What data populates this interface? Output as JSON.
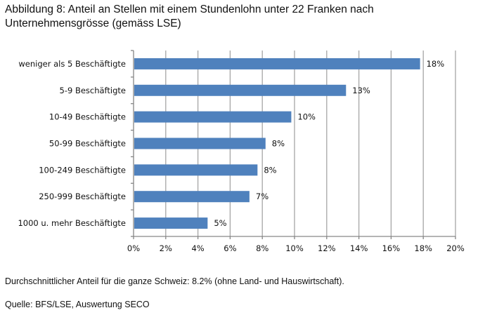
{
  "title_line1": "Abbildung 8: Anteil an Stellen mit einem Stundenlohn unter 22 Franken nach",
  "title_line2": "Unternehmensgrösse (gemäss LSE)",
  "note": "Durchschnittlicher Anteil für die ganze Schweiz: 8.2% (ohne Land- und Hauswirtschaft).",
  "source": "Quelle: BFS/LSE, Auswertung SECO",
  "chart_data": {
    "type": "bar",
    "orientation": "horizontal",
    "title": "Abbildung 8: Anteil an Stellen mit einem Stundenlohn unter 22 Franken nach Unternehmensgrösse (gemäss LSE)",
    "xlabel": "",
    "ylabel": "",
    "categories": [
      "weniger als 5 Beschäftigte",
      "5-9 Beschäftigte",
      "10-49 Beschäftigte",
      "50-99 Beschäftigte",
      "100-249 Beschäftigte",
      "250-999 Beschäftigte",
      "1000 u. mehr Beschäftigte"
    ],
    "values": [
      17.8,
      13.2,
      9.8,
      8.2,
      7.7,
      7.2,
      4.6
    ],
    "data_labels": [
      "18%",
      "13%",
      "10%",
      "8%",
      "8%",
      "7%",
      "5%"
    ],
    "xlim": [
      0,
      20
    ],
    "xticks": [
      0,
      2,
      4,
      6,
      8,
      10,
      12,
      14,
      16,
      18,
      20
    ],
    "xtick_labels": [
      "0%",
      "2%",
      "4%",
      "6%",
      "8%",
      "10%",
      "12%",
      "14%",
      "16%",
      "18%",
      "20%"
    ],
    "grid": "vertical",
    "legend": "none",
    "bar_color": "#4f81bd"
  }
}
